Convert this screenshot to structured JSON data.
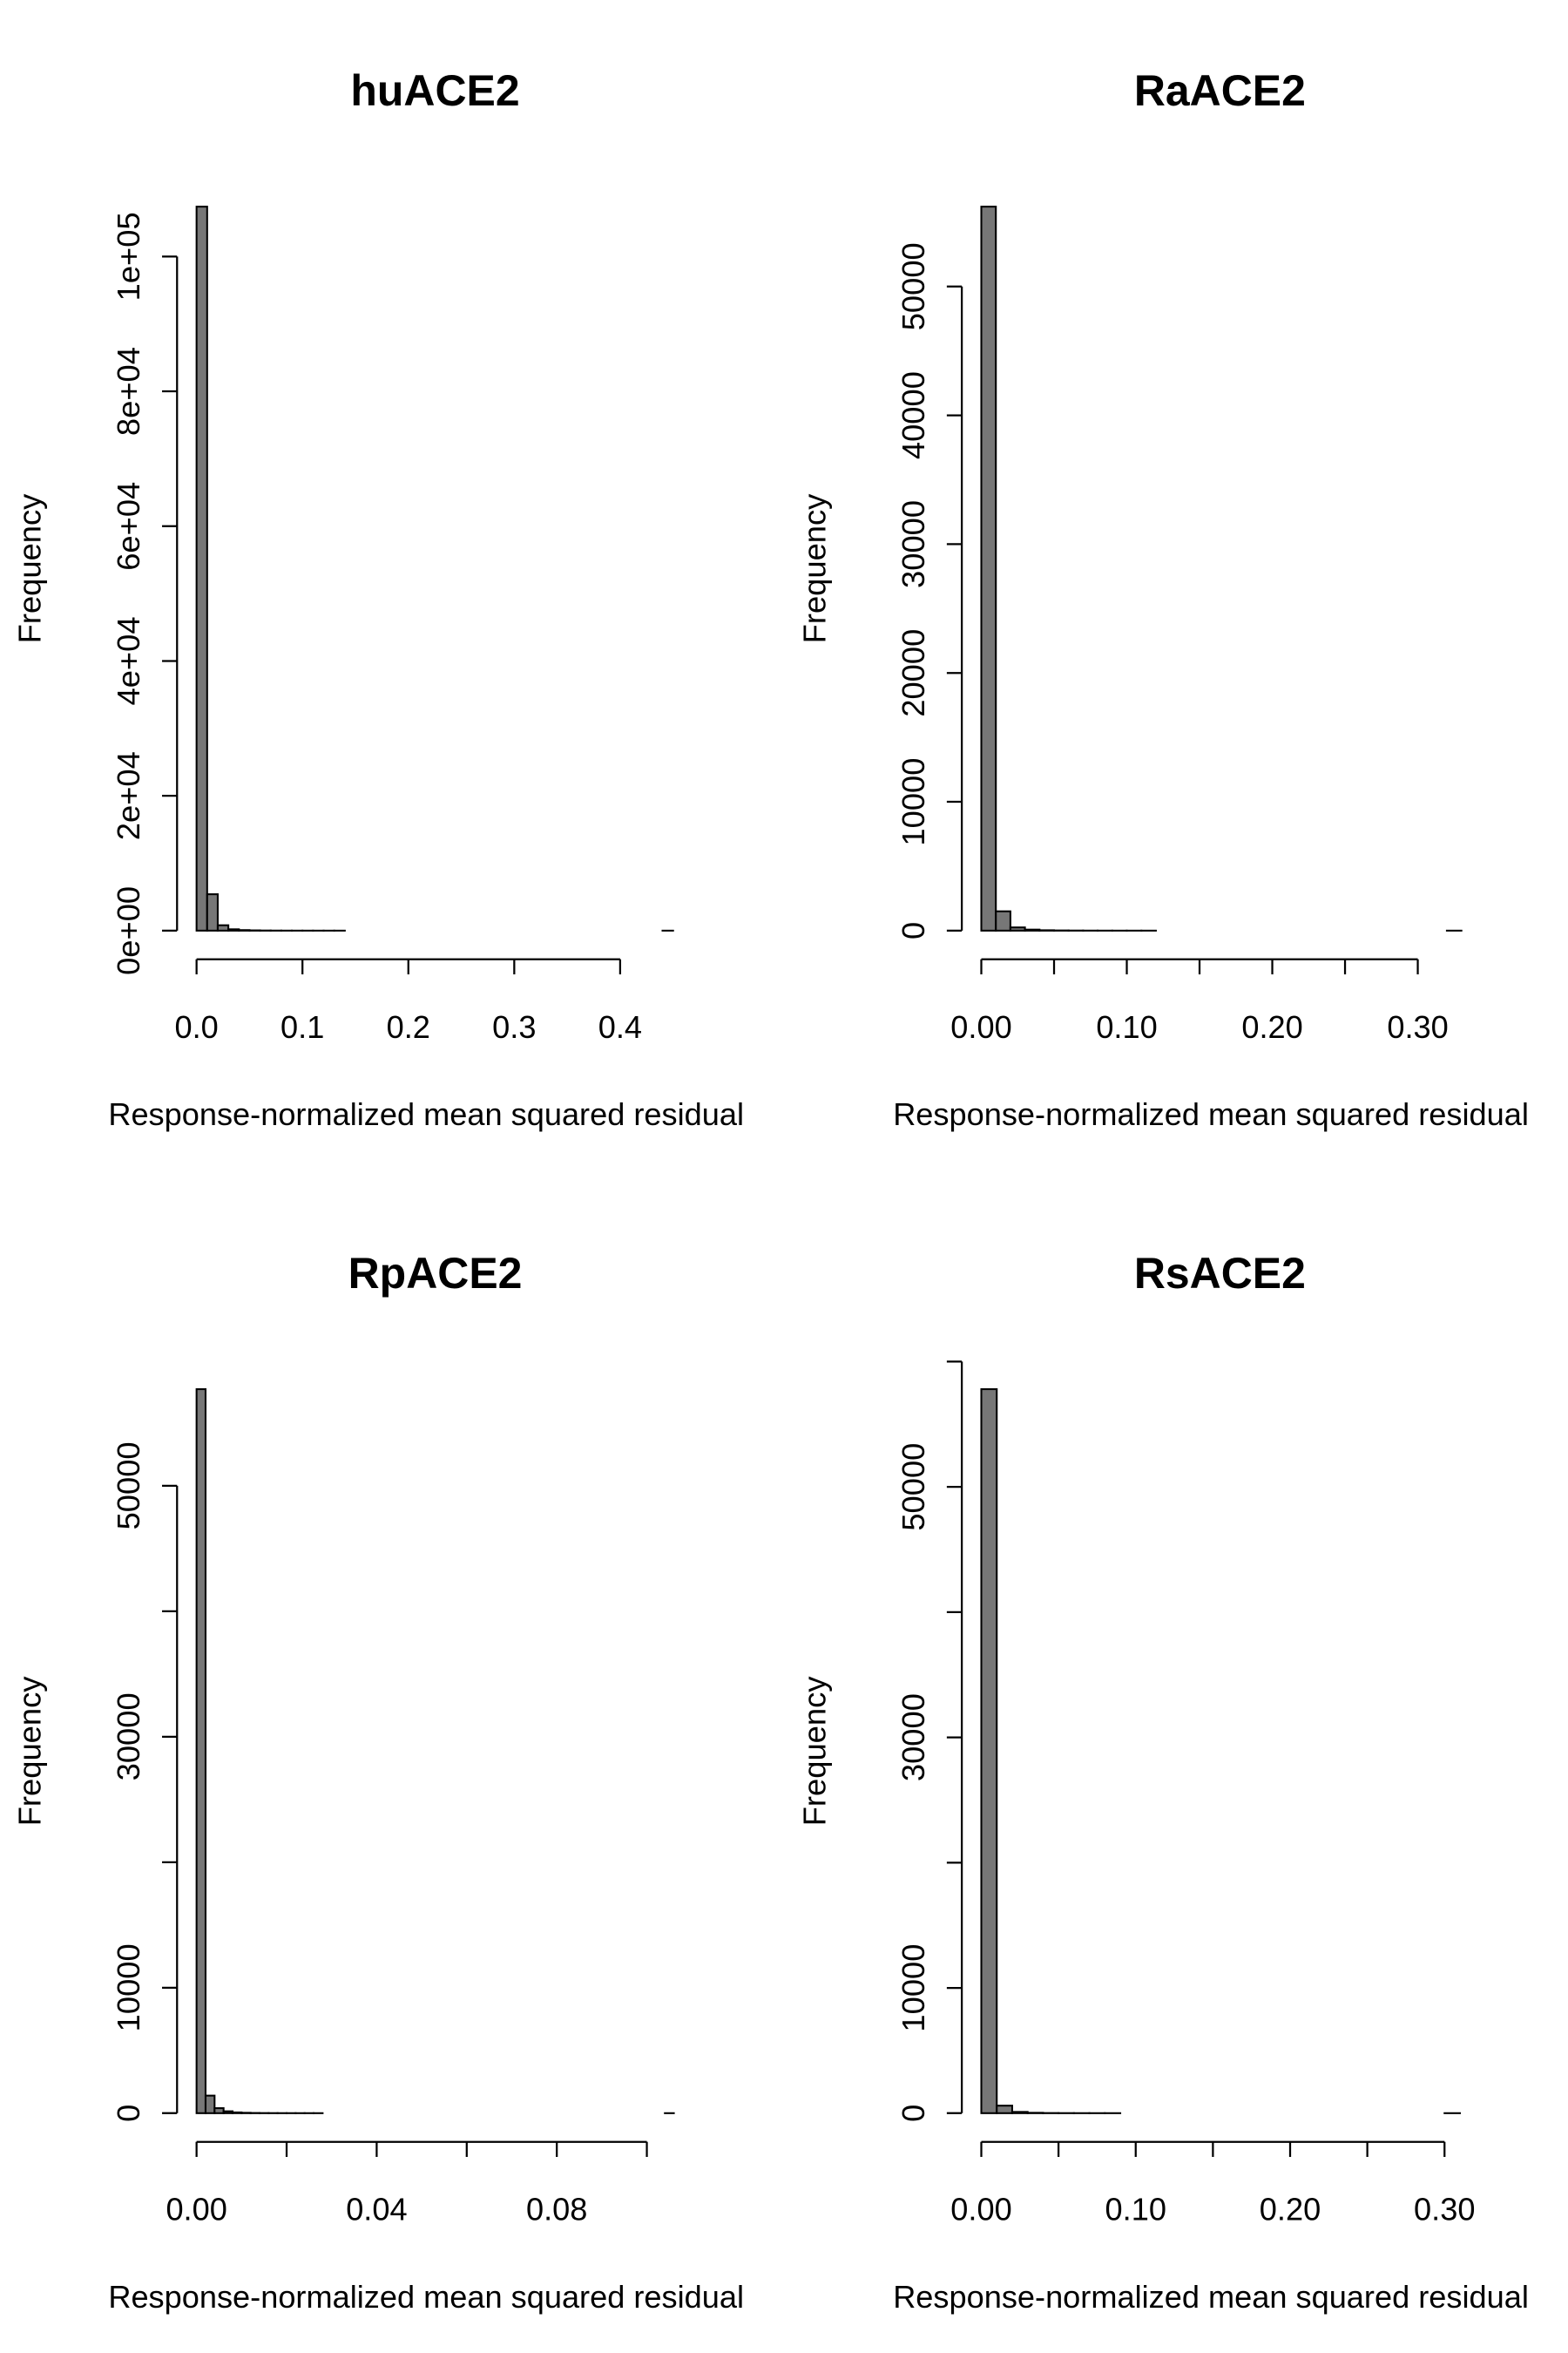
{
  "chart_data": [
    {
      "type": "histogram",
      "title": "huACE2",
      "xlabel": "Response-normalized mean squared residual",
      "ylabel": "Frequency",
      "color": "#777777",
      "bins": [
        0,
        0.01,
        0.02,
        0.03,
        0.04,
        0.05,
        0.06,
        0.07,
        0.08,
        0.09,
        0.1,
        0.11,
        0.12,
        0.13,
        0.14,
        0.15,
        0.16,
        0.17,
        0.18,
        0.19,
        0.2,
        0.21,
        0.22,
        0.23,
        0.24,
        0.25,
        0.26,
        0.27,
        0.28,
        0.29,
        0.3,
        0.31,
        0.32,
        0.33,
        0.34,
        0.35,
        0.36,
        0.37,
        0.38,
        0.39,
        0.4,
        0.41,
        0.42,
        0.43,
        0.44,
        0.45
      ],
      "counts": [
        107400,
        5400,
        800,
        200,
        80,
        40,
        20,
        10,
        5,
        3,
        2,
        1,
        1,
        1,
        0,
        0,
        0,
        0,
        0,
        0,
        0,
        0,
        0,
        0,
        0,
        0,
        0,
        0,
        0,
        0,
        0,
        0,
        0,
        0,
        0,
        0,
        0,
        0,
        0,
        0,
        0,
        0,
        0,
        0,
        1
      ],
      "xlim": [
        0,
        0.452
      ],
      "ylim": [
        0,
        107400
      ],
      "xticks": [
        {
          "value": 0,
          "label": "0.0"
        },
        0.1,
        0.2,
        0.3,
        0.4
      ],
      "yticks": [
        {
          "value": 0,
          "label": "0e+00"
        },
        {
          "value": 20000,
          "label": "2e+04"
        },
        {
          "value": 40000,
          "label": "4e+04"
        },
        {
          "value": 60000,
          "label": "6e+04"
        },
        {
          "value": 80000,
          "label": "8e+04"
        },
        {
          "value": 100000,
          "label": "1e+05"
        }
      ]
    },
    {
      "type": "histogram",
      "title": "RaACE2",
      "xlabel": "Response-normalized mean squared residual",
      "ylabel": "Frequency",
      "color": "#777777",
      "bins": [
        0,
        0.01,
        0.02,
        0.03,
        0.04,
        0.05,
        0.06,
        0.07,
        0.08,
        0.09,
        0.1,
        0.11,
        0.12,
        0.13,
        0.14,
        0.15,
        0.16,
        0.17,
        0.18,
        0.19,
        0.2,
        0.21,
        0.22,
        0.23,
        0.24,
        0.25,
        0.26,
        0.27,
        0.28,
        0.29,
        0.3,
        0.31,
        0.32,
        0.33
      ],
      "counts": [
        56200,
        1500,
        250,
        80,
        30,
        15,
        8,
        4,
        2,
        1,
        1,
        1,
        0,
        0,
        0,
        0,
        0,
        0,
        0,
        0,
        0,
        0,
        0,
        0,
        0,
        0,
        0,
        0,
        0,
        0,
        0,
        0,
        1
      ],
      "xlim": [
        0,
        0.329
      ],
      "ylim": [
        0,
        56200
      ],
      "xticks": [
        {
          "value": 0,
          "label": "0.00"
        },
        {
          "value": 0.05,
          "label": null
        },
        {
          "value": 0.1,
          "label": "0.10"
        },
        {
          "value": 0.15,
          "label": null
        },
        {
          "value": 0.2,
          "label": "0.20"
        },
        {
          "value": 0.25,
          "label": null
        },
        {
          "value": 0.3,
          "label": "0.30"
        }
      ],
      "yticks": [
        0,
        10000,
        20000,
        30000,
        40000,
        50000
      ]
    },
    {
      "type": "histogram",
      "title": "RpACE2",
      "xlabel": "Response-normalized mean squared residual",
      "ylabel": "Frequency",
      "color": "#777777",
      "bins": [
        0,
        0.002,
        0.004,
        0.006,
        0.008,
        0.01,
        0.012,
        0.014,
        0.016,
        0.018,
        0.02,
        0.022,
        0.024,
        0.026,
        0.028,
        0.03,
        0.032,
        0.034,
        0.036,
        0.038,
        0.04,
        0.042,
        0.044,
        0.046,
        0.048,
        0.05,
        0.052,
        0.054,
        0.056,
        0.058,
        0.06,
        0.062,
        0.064,
        0.066,
        0.068,
        0.07,
        0.072,
        0.074,
        0.076,
        0.078,
        0.08,
        0.082,
        0.084,
        0.086,
        0.088,
        0.09,
        0.092,
        0.094,
        0.096,
        0.098,
        0.1,
        0.102,
        0.104,
        0.106
      ],
      "counts": [
        57700,
        1400,
        400,
        150,
        60,
        30,
        15,
        8,
        5,
        3,
        2,
        1,
        1,
        1,
        0,
        0,
        0,
        0,
        0,
        0,
        0,
        0,
        0,
        0,
        0,
        0,
        0,
        0,
        0,
        0,
        0,
        0,
        0,
        0,
        0,
        0,
        0,
        0,
        0,
        0,
        0,
        0,
        0,
        0,
        0,
        0,
        0,
        0,
        0,
        0,
        0,
        0,
        1
      ],
      "xlim": [
        0,
        0.1063
      ],
      "ylim": [
        0,
        57700
      ],
      "xticks": [
        {
          "value": 0,
          "label": "0.00"
        },
        {
          "value": 0.02,
          "label": null
        },
        {
          "value": 0.04,
          "label": "0.04"
        },
        {
          "value": 0.06,
          "label": null
        },
        {
          "value": 0.08,
          "label": "0.08"
        },
        {
          "value": 0.1,
          "label": null
        }
      ],
      "yticks": [
        0,
        10000,
        {
          "value": 20000,
          "label": null
        },
        30000,
        {
          "value": 40000,
          "label": null
        },
        50000
      ]
    },
    {
      "type": "histogram",
      "title": "RsACE2",
      "xlabel": "Response-normalized mean squared residual",
      "ylabel": "Frequency",
      "color": "#777777",
      "bins": [
        0,
        0.01,
        0.02,
        0.03,
        0.04,
        0.05,
        0.06,
        0.07,
        0.08,
        0.09,
        0.1,
        0.11,
        0.12,
        0.13,
        0.14,
        0.15,
        0.16,
        0.17,
        0.18,
        0.19,
        0.2,
        0.21,
        0.22,
        0.23,
        0.24,
        0.25,
        0.26,
        0.27,
        0.28,
        0.29,
        0.3,
        0.31
      ],
      "counts": [
        57800,
        600,
        100,
        30,
        10,
        5,
        2,
        1,
        1,
        0,
        0,
        0,
        0,
        0,
        0,
        0,
        0,
        0,
        0,
        0,
        0,
        0,
        0,
        0,
        0,
        0,
        0,
        0,
        0,
        0,
        1
      ],
      "xlim": [
        0,
        0.31
      ],
      "ylim": [
        0,
        57800
      ],
      "xticks": [
        {
          "value": 0,
          "label": "0.00"
        },
        {
          "value": 0.05,
          "label": null
        },
        {
          "value": 0.1,
          "label": "0.10"
        },
        {
          "value": 0.15,
          "label": null
        },
        {
          "value": 0.2,
          "label": "0.20"
        },
        {
          "value": 0.25,
          "label": null
        },
        {
          "value": 0.3,
          "label": "0.30"
        }
      ],
      "yticks": [
        0,
        10000,
        {
          "value": 20000,
          "label": null
        },
        30000,
        {
          "value": 40000,
          "label": null
        },
        50000,
        {
          "value": 60000,
          "label": null
        }
      ]
    }
  ]
}
